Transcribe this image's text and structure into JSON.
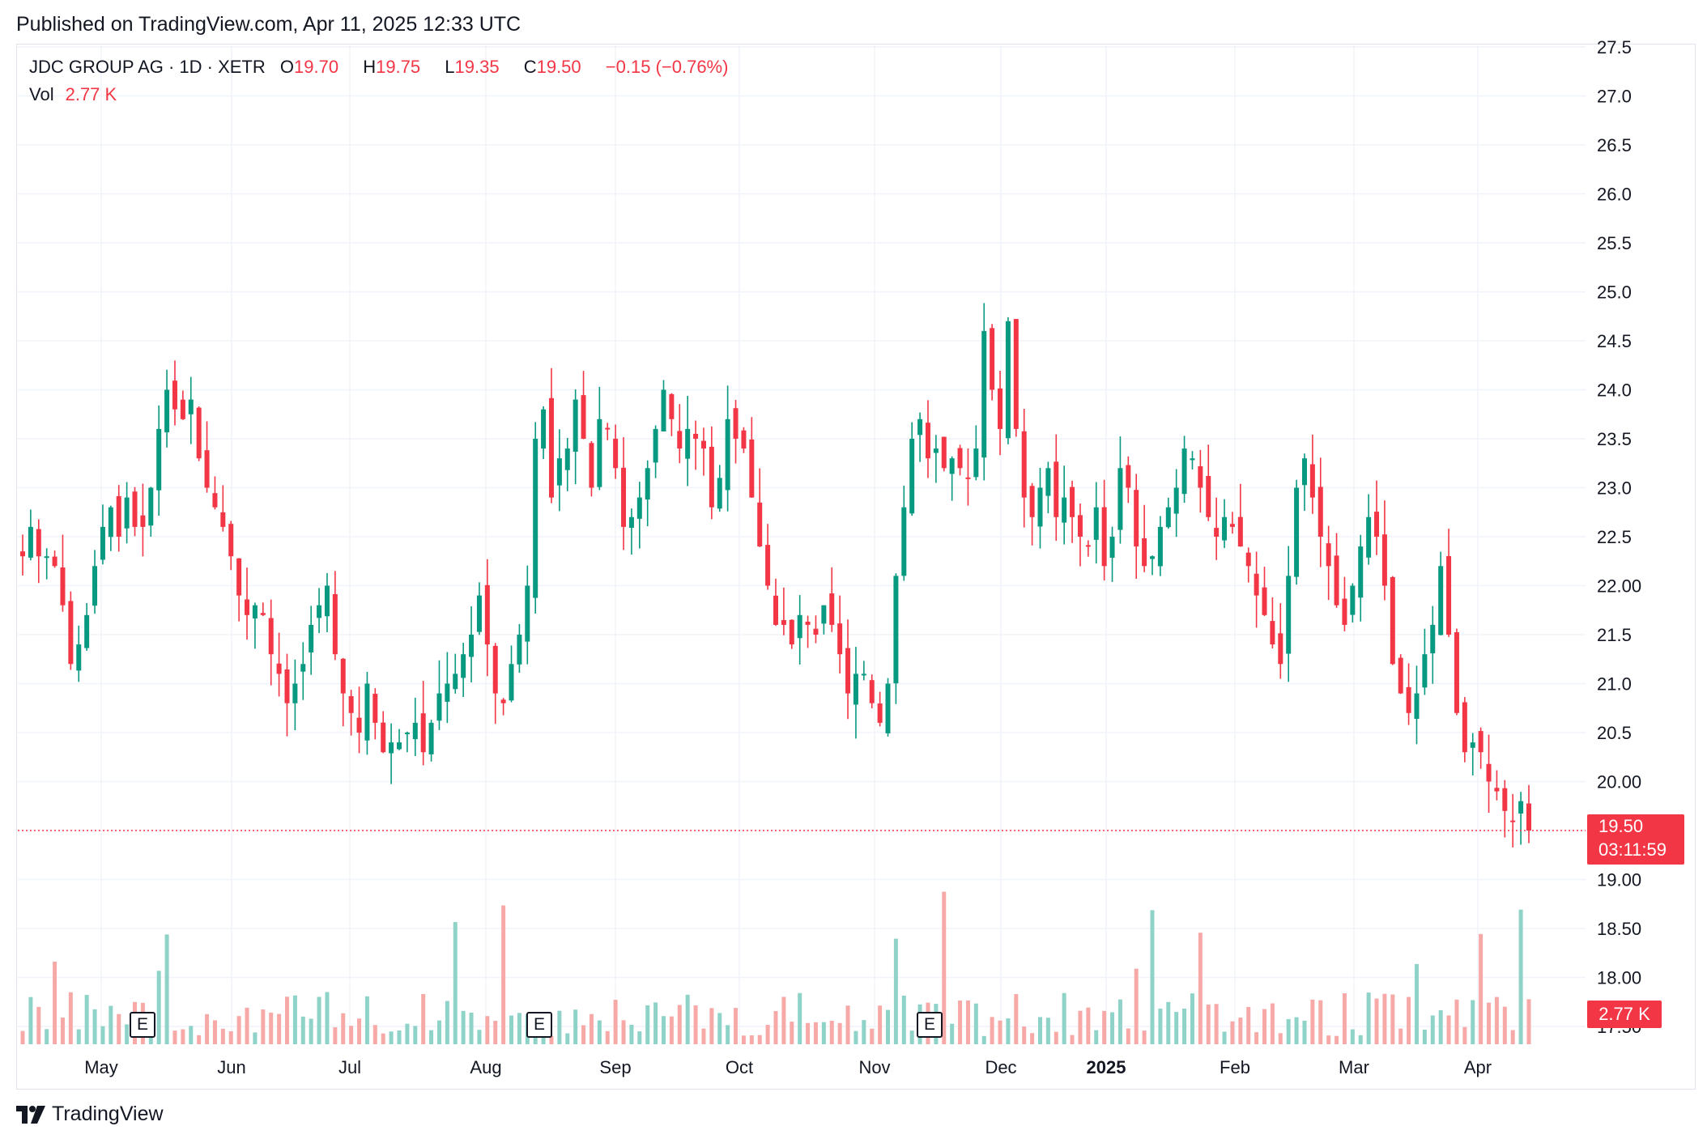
{
  "header": {
    "published": "Published on TradingView.com, Apr 11, 2025 12:33 UTC"
  },
  "legend": {
    "symbol": "JDC GROUP AG · 1D · XETR",
    "o_label": "O",
    "o_value": "19.70",
    "h_label": "H",
    "h_value": "19.75",
    "l_label": "L",
    "l_value": "19.35",
    "c_label": "C",
    "c_value": "19.50",
    "change": "−0.15 (−0.76%)",
    "vol_label": "Vol",
    "vol_value": "2.77 K"
  },
  "badges": {
    "price": "19.50",
    "countdown": "03:11:59",
    "volume": "2.77 K"
  },
  "earnings_label": "E",
  "brand": "TradingView",
  "colors": {
    "up": "#089981",
    "down": "#f23645",
    "vol_up": "#8fd2c8",
    "vol_down": "#f7a9a7",
    "grid": "#f0f3fa",
    "price_line": "#f23645"
  },
  "chart_data": {
    "type": "candlestick",
    "symbol": "JDC GROUP AG",
    "exchange": "XETR",
    "interval": "1D",
    "x_ticks": [
      "May",
      "Jun",
      "Jul",
      "Aug",
      "Sep",
      "Oct",
      "Nov",
      "Dec",
      "2025",
      "Feb",
      "Mar",
      "Apr"
    ],
    "y_ticks": [
      "27.5",
      "27.0",
      "26.5",
      "26.0",
      "25.5",
      "25.0",
      "24.5",
      "24.0",
      "23.5",
      "23.0",
      "22.5",
      "22.00",
      "21.5",
      "21.0",
      "20.5",
      "20.00",
      "19.00",
      "18.50",
      "18.00",
      "17.50"
    ],
    "ylim": [
      17.4,
      27.5
    ],
    "grid": true,
    "last_price": 19.5,
    "earnings_markers": [
      "May",
      "Aug",
      "Nov"
    ],
    "series": [
      {
        "name": "price",
        "close_path": [
          22.3,
          22.6,
          22.3,
          22.3,
          22.2,
          21.8,
          21.2,
          21.4,
          21.7,
          22.2,
          22.6,
          22.8,
          22.5,
          22.9,
          22.6,
          22.6,
          23.0,
          23.6,
          24.0,
          23.8,
          23.7,
          23.9,
          23.3,
          23.0,
          22.8,
          22.6,
          22.3,
          21.9,
          21.7,
          21.8,
          21.7,
          21.3,
          21.1,
          20.8,
          21.0,
          21.2,
          21.6,
          21.8,
          22.0,
          21.3,
          20.9,
          20.7,
          20.5,
          21.0,
          20.6,
          20.3,
          20.4,
          20.4,
          20.5,
          20.6,
          20.3,
          20.6,
          20.9,
          21.0,
          21.1,
          21.3,
          21.5,
          21.9,
          21.4,
          20.9,
          20.8,
          21.2,
          21.5,
          22.0,
          23.5,
          23.8,
          22.9,
          23.3,
          23.4,
          23.9,
          23.5,
          23.0,
          23.7,
          23.6,
          23.2,
          22.6,
          22.7,
          22.9,
          23.2,
          23.6,
          24.0,
          23.7,
          23.4,
          23.6,
          23.5,
          23.4,
          22.8,
          23.1,
          23.7,
          23.5,
          23.4,
          22.9,
          22.4,
          22.0,
          21.6,
          21.6,
          21.4,
          21.7,
          21.6,
          21.5,
          21.8,
          21.6,
          21.3,
          20.9,
          21.1,
          21.1,
          20.8,
          20.6,
          21.0,
          22.1,
          22.8,
          23.5,
          23.7,
          23.3,
          23.4,
          23.2,
          23.3,
          23.2,
          23.1,
          23.4,
          24.6,
          24.0,
          23.6,
          24.7,
          23.6,
          22.9,
          22.7,
          23.0,
          23.2,
          22.7,
          22.9,
          22.7,
          22.5,
          22.4,
          22.8,
          22.2,
          22.5,
          23.2,
          23.0,
          22.4,
          22.2,
          22.3,
          22.6,
          22.8,
          23.0,
          23.4,
          23.3,
          23.0,
          22.7,
          22.5,
          22.7,
          22.6,
          22.4,
          22.2,
          21.9,
          21.7,
          21.4,
          21.2,
          22.1,
          23.0,
          23.3,
          22.9,
          22.5,
          22.2,
          21.8,
          21.6,
          22.0,
          22.4,
          22.7,
          22.5,
          22.0,
          21.2,
          20.9,
          20.7,
          20.9,
          21.3,
          21.6,
          22.2,
          21.5,
          20.7,
          20.3,
          20.4,
          20.3,
          20.0,
          19.9,
          19.7,
          19.6,
          19.8,
          19.5
        ]
      }
    ]
  }
}
